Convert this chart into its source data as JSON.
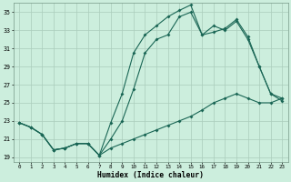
{
  "xlabel": "Humidex (Indice chaleur)",
  "bg_color": "#cceedd",
  "grid_color": "#aaccbb",
  "line_color": "#1a6655",
  "xlim": [
    -0.5,
    23.5
  ],
  "ylim": [
    18.5,
    36
  ],
  "yticks": [
    19,
    21,
    23,
    25,
    27,
    29,
    31,
    33,
    35
  ],
  "xticks": [
    0,
    1,
    2,
    3,
    4,
    5,
    6,
    7,
    8,
    9,
    10,
    11,
    12,
    13,
    14,
    15,
    16,
    17,
    18,
    19,
    20,
    21,
    22,
    23
  ],
  "line1_x": [
    0,
    1,
    2,
    3,
    4,
    5,
    6,
    7,
    8,
    9,
    10,
    11,
    12,
    13,
    14,
    15,
    16,
    17,
    18,
    19,
    20,
    21,
    22,
    23
  ],
  "line1_y": [
    22.8,
    22.3,
    21.5,
    19.8,
    20.0,
    20.5,
    20.5,
    19.2,
    22.8,
    26.0,
    30.5,
    32.5,
    33.5,
    34.5,
    35.2,
    35.8,
    32.5,
    33.5,
    33.0,
    34.0,
    32.0,
    29.0,
    26.0,
    25.2
  ],
  "line2_x": [
    0,
    1,
    2,
    3,
    4,
    5,
    6,
    7,
    8,
    9,
    10,
    11,
    12,
    13,
    14,
    15,
    16,
    17,
    18,
    19,
    20,
    21,
    22,
    23
  ],
  "line2_y": [
    22.8,
    22.3,
    21.5,
    19.8,
    20.0,
    20.5,
    20.5,
    19.2,
    21.0,
    23.0,
    26.5,
    30.5,
    32.0,
    32.5,
    34.5,
    35.0,
    32.5,
    32.8,
    33.2,
    34.2,
    32.3,
    29.0,
    26.0,
    25.5
  ],
  "line3_x": [
    0,
    1,
    2,
    3,
    4,
    5,
    6,
    7,
    8,
    9,
    10,
    11,
    12,
    13,
    14,
    15,
    16,
    17,
    18,
    19,
    20,
    21,
    22,
    23
  ],
  "line3_y": [
    22.8,
    22.3,
    21.5,
    19.8,
    20.0,
    20.5,
    20.5,
    19.2,
    20.0,
    20.5,
    21.0,
    21.5,
    22.0,
    22.5,
    23.0,
    23.5,
    24.2,
    25.0,
    25.5,
    26.0,
    25.5,
    25.0,
    25.0,
    25.5
  ]
}
